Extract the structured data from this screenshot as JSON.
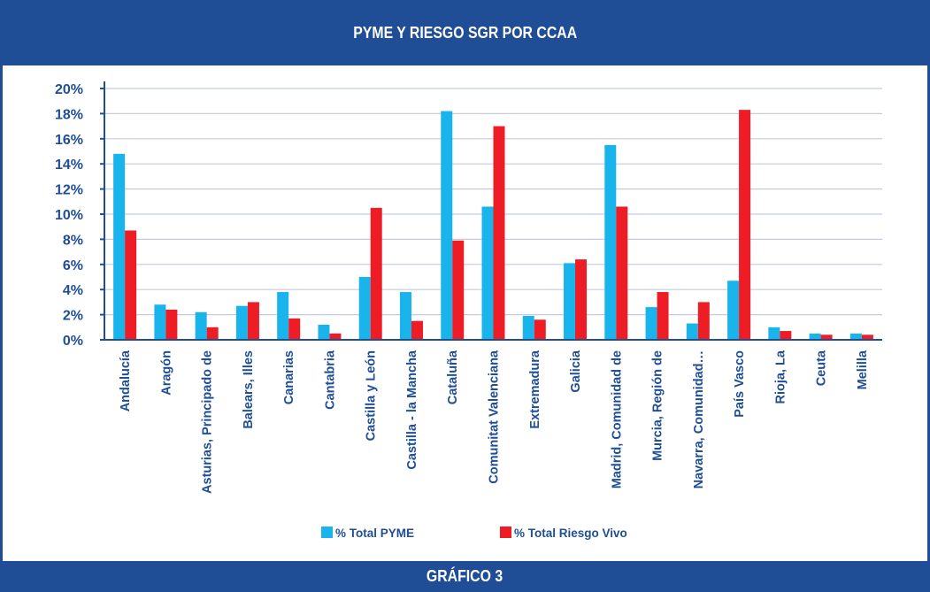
{
  "header": {
    "title": "PYME Y RIESGO SGR POR CCAA"
  },
  "footer": {
    "caption": "GRÁFICO 3"
  },
  "colors": {
    "frame": "#1f4e96",
    "pyme": "#1ab4ec",
    "riesgo": "#ee1c25",
    "grid": "#c5c9e4",
    "text": "#1f4e96"
  },
  "chart_data": {
    "type": "bar",
    "title": "PYME Y RIESGO SGR POR CCAA",
    "xlabel": "",
    "ylabel": "",
    "ylim": [
      0,
      20
    ],
    "yticks": [
      "0%",
      "2%",
      "4%",
      "6%",
      "8%",
      "10%",
      "12%",
      "14%",
      "16%",
      "18%",
      "20%"
    ],
    "grid": true,
    "legend": "bottom",
    "categories": [
      "Andalucía",
      "Aragón",
      "Asturias, Principado de",
      "Balears, Illes",
      "Canarias",
      "Cantabria",
      "Castilla y León",
      "Castilla - la Mancha",
      "Cataluña",
      "Comunitat Valenciana",
      "Extremadura",
      "Galicia",
      "Madrid, Comunidad de",
      "Murcia, Región de",
      "Navarra, Comunidad…",
      "País Vasco",
      "Rioja, La",
      "Ceuta",
      "Melilla"
    ],
    "series": [
      {
        "name": "% Total PYME",
        "values": [
          14.8,
          2.8,
          2.2,
          2.7,
          3.8,
          1.2,
          5.0,
          3.8,
          18.2,
          10.6,
          1.9,
          6.1,
          15.5,
          2.6,
          1.3,
          4.7,
          1.0,
          0.5,
          0.5
        ]
      },
      {
        "name": "% Total Riesgo Vivo",
        "values": [
          8.7,
          2.4,
          1.0,
          3.0,
          1.7,
          0.5,
          10.5,
          1.5,
          7.9,
          17.0,
          1.6,
          6.4,
          10.6,
          3.8,
          3.0,
          18.3,
          0.7,
          0.4,
          0.4
        ]
      }
    ]
  }
}
